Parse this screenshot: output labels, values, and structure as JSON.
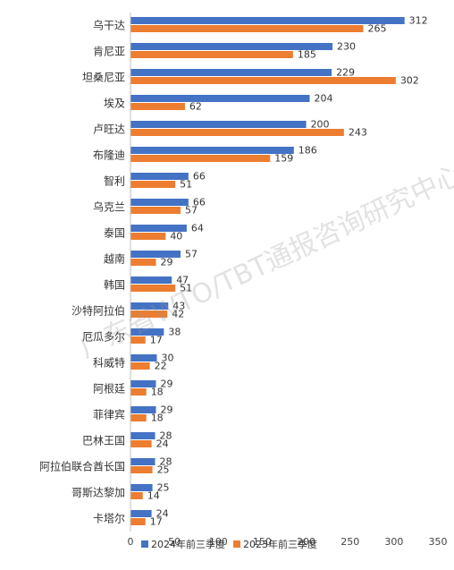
{
  "chart_data": {
    "type": "bar",
    "orientation": "horizontal",
    "categories": [
      "乌干达",
      "肯尼亚",
      "坦桑尼亚",
      "埃及",
      "卢旺达",
      "布隆迪",
      "智利",
      "乌克兰",
      "泰国",
      "越南",
      "韩国",
      "沙特阿拉伯",
      "厄瓜多尔",
      "科威特",
      "阿根廷",
      "菲律宾",
      "巴林王国",
      "阿拉伯联合酋长国",
      "哥斯达黎加",
      "卡塔尔"
    ],
    "series": [
      {
        "name": "2024年前三季度",
        "color": "#4472C4",
        "values": [
          312,
          230,
          229,
          204,
          200,
          186,
          66,
          66,
          64,
          57,
          47,
          43,
          38,
          30,
          29,
          29,
          28,
          28,
          25,
          24
        ]
      },
      {
        "name": "2023年前三季度",
        "color": "#ED7D31",
        "values": [
          265,
          185,
          302,
          62,
          243,
          159,
          51,
          57,
          40,
          29,
          51,
          42,
          17,
          22,
          18,
          18,
          24,
          25,
          14,
          17
        ]
      }
    ],
    "xlim": [
      0,
      350
    ],
    "xticks": [
      0,
      50,
      100,
      150,
      200,
      250,
      300,
      350
    ],
    "grid": false,
    "legend_position": "bottom"
  },
  "watermark": "广东省WTO/TBT通报咨询研究中心"
}
